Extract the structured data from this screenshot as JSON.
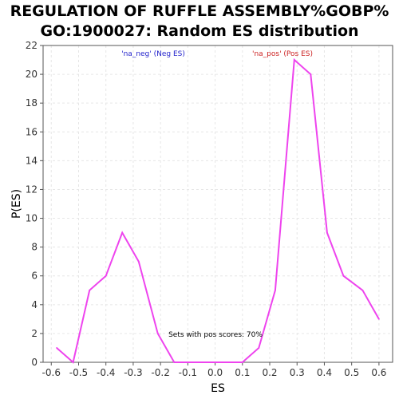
{
  "chart": {
    "title_lines": [
      "REGULATION OF RUFFLE ASSEMBLY%GOBP%",
      "GO:1900027: Random ES distribution"
    ]
  },
  "colors": {
    "line": "#ee44ee",
    "neg_label": "#2222cc",
    "pos_label": "#cc2222",
    "grid": "#e6e6e6",
    "axis": "#555555"
  },
  "chart_data": {
    "type": "line",
    "title": "REGULATION OF RUFFLE ASSEMBLY%GOBP% GO:1900027: Random ES distribution",
    "xlabel": "ES",
    "ylabel": "P(ES)",
    "xlim": [
      -0.63,
      0.65
    ],
    "ylim": [
      0,
      22
    ],
    "xticks": [
      -0.6,
      -0.5,
      -0.4,
      -0.3,
      -0.2,
      -0.1,
      0.0,
      0.1,
      0.2,
      0.3,
      0.4,
      0.5,
      0.6
    ],
    "xtick_labels": [
      "-0.6",
      "-0.5",
      "-0.4",
      "-0.3",
      "-0.2",
      "-0.1",
      "0.0",
      "0.1",
      "0.2",
      "0.3",
      "0.4",
      "0.5",
      "0.6"
    ],
    "yticks": [
      0,
      2,
      4,
      6,
      8,
      10,
      12,
      14,
      16,
      18,
      20,
      22
    ],
    "ytick_labels": [
      "0",
      "2",
      "4",
      "6",
      "8",
      "10",
      "12",
      "14",
      "16",
      "18",
      "20",
      "22"
    ],
    "grid": true,
    "series": [
      {
        "x": [
          -0.58,
          -0.52,
          -0.46,
          -0.4,
          -0.34,
          -0.28,
          -0.21,
          -0.15,
          -0.09,
          -0.03,
          0.03,
          0.1,
          0.16,
          0.22,
          0.29,
          0.35,
          0.41,
          0.47,
          0.54,
          0.6
        ],
        "y": [
          1,
          0,
          5,
          6,
          9,
          7,
          2,
          0,
          0,
          0,
          0,
          0,
          1,
          5,
          21,
          20,
          9,
          6,
          5,
          3
        ]
      }
    ],
    "annotations": {
      "neg_label": "'na_neg' (Neg ES)",
      "pos_label": "'na_pos' (Pos ES)",
      "pos_scores_text": "Sets with pos scores: 70%"
    }
  }
}
